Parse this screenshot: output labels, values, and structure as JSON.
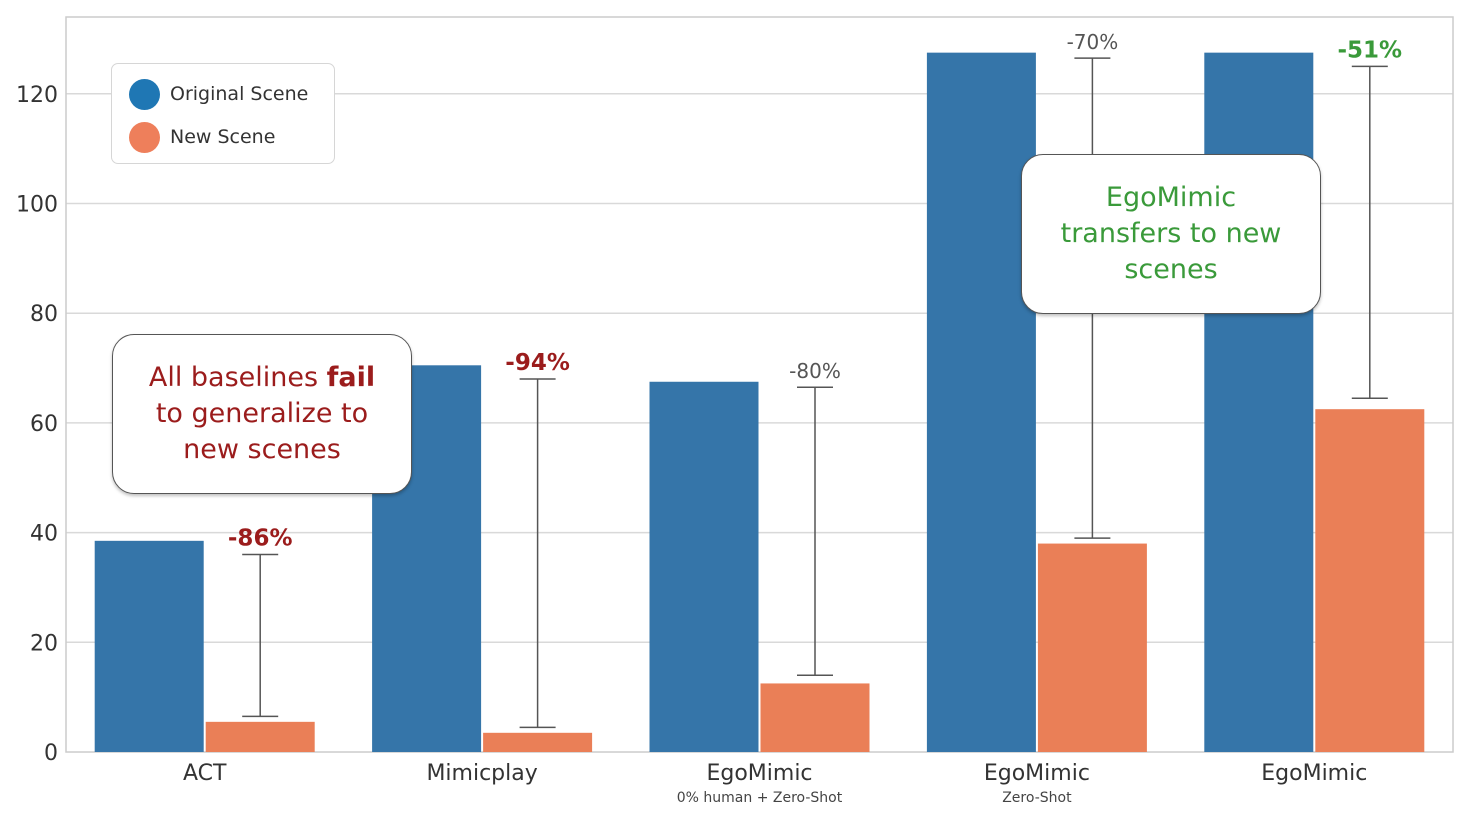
{
  "chart_data": {
    "type": "bar",
    "categories": [
      "ACT",
      "Mimicplay",
      "EgoMimic",
      "EgoMimic",
      "EgoMimic"
    ],
    "subcategories": [
      "",
      "",
      "0% human + Zero-Shot",
      "Zero-Shot",
      ""
    ],
    "series": [
      {
        "name": "Original Scene",
        "color": "#3575a9",
        "values": [
          38.5,
          70.5,
          67.5,
          127.5,
          127.5
        ]
      },
      {
        "name": "New Scene",
        "color": "#ea7f57",
        "values": [
          5.5,
          3.5,
          12.5,
          38,
          62.5
        ]
      }
    ],
    "drops": [
      {
        "label": "-86%",
        "top": 36,
        "bottom": 6.5,
        "style": "bold-red"
      },
      {
        "label": "-94%",
        "top": 68,
        "bottom": 4.5,
        "style": "bold-red"
      },
      {
        "label": "-80%",
        "top": 66.5,
        "bottom": 14,
        "style": "plain"
      },
      {
        "label": "-70%",
        "top": 126.5,
        "bottom": 39,
        "style": "plain"
      },
      {
        "label": "-51%",
        "top": 125,
        "bottom": 64.5,
        "style": "bold-green"
      }
    ],
    "y_ticks": [
      0,
      20,
      40,
      60,
      80,
      100,
      120
    ],
    "ylim": [
      0,
      134
    ],
    "grid": true,
    "legend_position": "top-left",
    "title": "",
    "xlabel": "",
    "ylabel": ""
  },
  "legend": {
    "items": [
      {
        "label": "Original Scene",
        "color": "#1f77b4"
      },
      {
        "label": "New Scene",
        "color": "#ee7f5b"
      }
    ]
  },
  "annotations": {
    "fail_before": "All baselines ",
    "fail_bold": "fail",
    "fail_after": " to generalize to new scenes",
    "transfer": "EgoMimic transfers to new scenes"
  },
  "colors": {
    "drop_red": "#9b1c1c",
    "drop_green": "#3a9a3a",
    "drop_plain": "#555555"
  }
}
